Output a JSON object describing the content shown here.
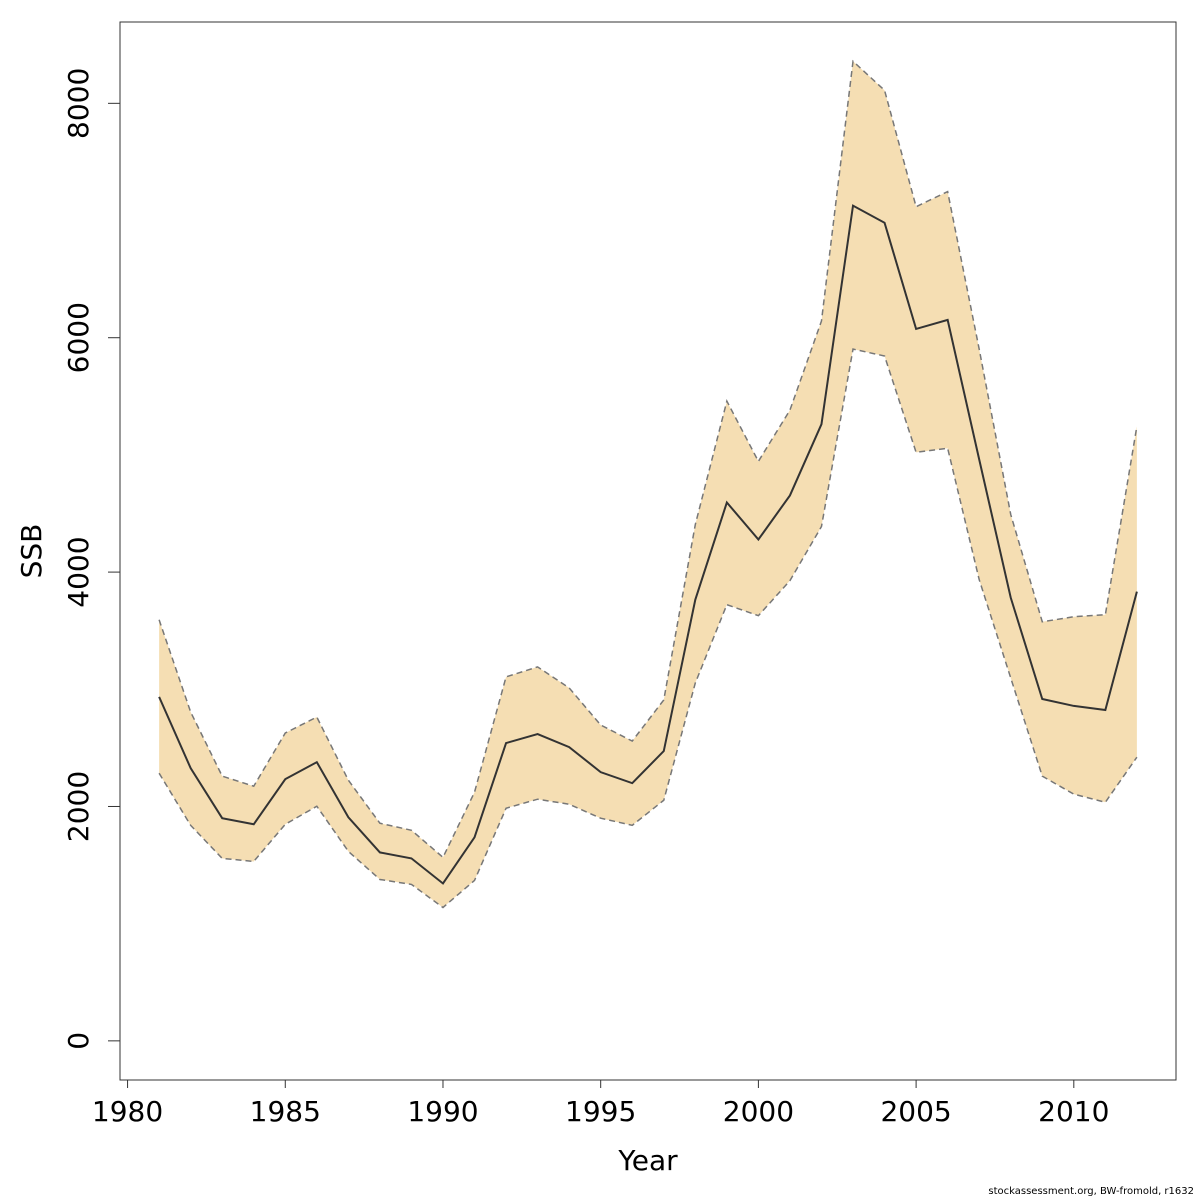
{
  "chart_data": {
    "type": "band_line",
    "xlabel": "Year",
    "ylabel": "SSB",
    "caption": "stockassessment.org, BW-fromold, r1632",
    "x": [
      1981,
      1982,
      1983,
      1984,
      1985,
      1986,
      1987,
      1988,
      1989,
      1990,
      1991,
      1992,
      1993,
      1994,
      1995,
      1996,
      1997,
      1998,
      1999,
      2000,
      2001,
      2002,
      2003,
      2004,
      2005,
      2006,
      2007,
      2008,
      2009,
      2010,
      2011,
      2012
    ],
    "values": [
      2935,
      2327,
      1900,
      1848,
      2233,
      2378,
      1908,
      1608,
      1557,
      1343,
      1737,
      2541,
      2618,
      2507,
      2293,
      2199,
      2473,
      3765,
      4594,
      4278,
      4654,
      5262,
      7127,
      6981,
      6075,
      6152,
      4962,
      3782,
      2917,
      2858,
      2823,
      3833
    ],
    "upper": [
      3593,
      2806,
      2259,
      2173,
      2627,
      2763,
      2224,
      1857,
      1797,
      1566,
      2122,
      3106,
      3191,
      3012,
      2695,
      2558,
      2909,
      4406,
      5459,
      4945,
      5382,
      6143,
      8359,
      8111,
      7118,
      7247,
      5903,
      4492,
      3576,
      3619,
      3636,
      5245
    ],
    "lower": [
      2284,
      1839,
      1557,
      1531,
      1848,
      2002,
      1617,
      1377,
      1335,
      1138,
      1369,
      1985,
      2062,
      2019,
      1900,
      1839,
      2053,
      3054,
      3722,
      3628,
      3927,
      4389,
      5903,
      5844,
      5022,
      5057,
      3936,
      3097,
      2259,
      2105,
      2036,
      2421
    ],
    "color": "#333333",
    "band_color": "#f5deb3",
    "band_edge_color": "#777777",
    "xlim": [
      1979.76,
      2013.24
    ],
    "ylim": [
      -334,
      8694
    ],
    "xticks": [
      1980,
      1985,
      1990,
      1995,
      2000,
      2005,
      2010
    ],
    "yticks": [
      0,
      2000,
      4000,
      6000,
      8000
    ]
  }
}
